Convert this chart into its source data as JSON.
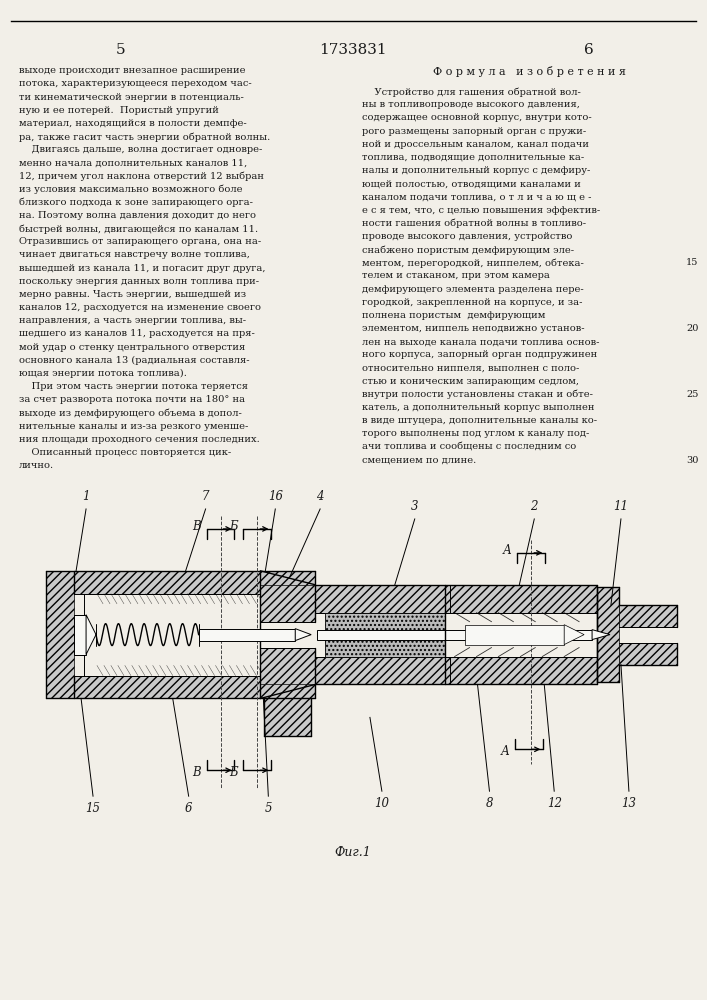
{
  "page_number_left": "5",
  "page_number_center": "1733831",
  "page_number_right": "6",
  "left_column_text": [
    "выходе происходит внезапное расширение",
    "потока, характеризующееся переходом час-",
    "ти кинематической энергии в потенциаль-",
    "ную и ее потерей.  Пористый упругий",
    "материал, находящийся в полости демпфе-",
    "ра, также гасит часть энергии обратной волны.",
    "    Двигаясь дальше, волна достигает одновре-",
    "менно начала дополнительных каналов 11,",
    "12, причем угол наклона отверстий 12 выбран",
    "из условия максимально возможного боле",
    "близкого подхода к зоне запирающего орга-",
    "на. Поэтому волна давления доходит до него",
    "быстрей волны, двигающейся по каналам 11.",
    "Отразившись от запирающего органа, она на-",
    "чинает двигаться навстречу волне топлива,",
    "вышедшей из канала 11, и погасит друг друга,",
    "поскольку энергия данных волн топлива при-",
    "мерно равны. Часть энергии, вышедшей из",
    "каналов 12, расходуется на изменение своего",
    "направления, а часть энергии топлива, вы-",
    "шедшего из каналов 11, расходуется на пря-",
    "мой удар о стенку центрального отверстия",
    "основного канала 13 (радиальная составля-",
    "ющая энергии потока топлива).",
    "    При этом часть энергии потока теряется",
    "за счет разворота потока почти на 180° на",
    "выходе из демфирующего объема в допол-",
    "нительные каналы и из-за резкого уменше-",
    "ния площади проходного сечения последних.",
    "    Описанный процесс повторяется цик-",
    "лично."
  ],
  "right_column_title": "Ф о р м у л а   и з о б р е т е н и я",
  "right_column_text": [
    "    Устройство для гашения обратной вол-",
    "ны в топливопроводе высокого давления,",
    "содержащее основной корпус, внутри кото-",
    "рого размещены запорный орган с пружи-",
    "ной и дроссельным каналом, канал подачи",
    "топлива, подводящие дополнительные ка-",
    "налы и дополнительный корпус с демфиру-",
    "ющей полостью, отводящими каналами и",
    "каналом подачи топлива, о т л и ч а ю щ е -",
    "е с я тем, что, с целью повышения эффектив-",
    "ности гашения обратной волны в топливо-",
    "проводе высокого давления, устройство",
    "снабжено пористым демфирующим эле-",
    "ментом, перегородкой, ниппелем, обтека-",
    "телем и стаканом, при этом камера",
    "демфирующего элемента разделена пере-",
    "городкой, закрепленной на корпусе, и за-",
    "полнена пористым  демфирующим",
    "элементом, ниппель неподвижно установ-",
    "лен на выходе канала подачи топлива основ-",
    "ного корпуса, запорный орган подпружинен",
    "относительно ниппеля, выполнен с поло-",
    "стью и коническим запирающим седлом,",
    "внутри полости установлены стакан и обте-",
    "катель, а дополнительный корпус выполнен",
    "в виде штуцера, дополнительные каналы ко-",
    "торого выполнены под углом к каналу под-",
    "ачи топлива и сообщены с последним со",
    "смещением по длине."
  ],
  "line_numbers_right": [
    "15",
    "20",
    "25",
    "30"
  ],
  "fig_label": "Фиг.1",
  "bg_color": "#f2efe8",
  "text_color": "#1a1a1a",
  "line_color": "#000000"
}
